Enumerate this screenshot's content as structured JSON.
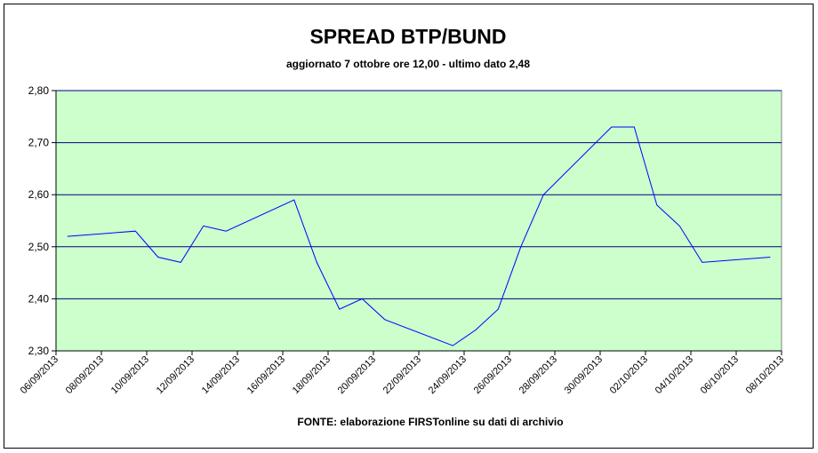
{
  "chart_data": {
    "type": "line",
    "title": "SPREAD BTP/BUND",
    "subtitle": "aggiornato 7 ottobre ore 12,00 - ultimo dato 2,48",
    "source": "FONTE:  elaborazione FIRSTonline su dati di archivio",
    "x": [
      "06/09/2013",
      "09/09/2013",
      "10/09/2013",
      "11/09/2013",
      "12/09/2013",
      "13/09/2013",
      "16/09/2013",
      "17/09/2013",
      "18/09/2013",
      "19/09/2013",
      "20/09/2013",
      "23/09/2013",
      "24/09/2013",
      "25/09/2013",
      "26/09/2013",
      "27/09/2013",
      "30/09/2013",
      "01/10/2013",
      "02/10/2013",
      "03/10/2013",
      "04/10/2013",
      "07/10/2013"
    ],
    "series": [
      {
        "name": "Spread",
        "color": "#0000ff",
        "values": [
          2.52,
          2.53,
          2.48,
          2.47,
          2.54,
          2.53,
          2.59,
          2.47,
          2.38,
          2.4,
          2.36,
          2.31,
          2.34,
          2.38,
          2.5,
          2.6,
          2.73,
          2.73,
          2.58,
          2.54,
          2.47,
          2.48
        ]
      }
    ],
    "xlim": [
      "06/09/2013",
      "08/10/2013"
    ],
    "xticks": [
      "06/09/2013",
      "08/09/2013",
      "10/09/2013",
      "12/09/2013",
      "14/09/2013",
      "16/09/2013",
      "18/09/2013",
      "20/09/2013",
      "22/09/2013",
      "24/09/2013",
      "26/09/2013",
      "28/09/2013",
      "30/09/2013",
      "02/10/2013",
      "04/10/2013",
      "06/10/2013",
      "08/10/2013"
    ],
    "ylim": [
      2.3,
      2.8
    ],
    "yticks": [
      {
        "value": 2.3,
        "label": "2,30"
      },
      {
        "value": 2.4,
        "label": "2,40"
      },
      {
        "value": 2.5,
        "label": "2,50"
      },
      {
        "value": 2.6,
        "label": "2,60"
      },
      {
        "value": 2.7,
        "label": "2,70"
      },
      {
        "value": 2.8,
        "label": "2,80"
      }
    ],
    "grid": true,
    "plot_background": "#ccffcc",
    "grid_color": "#000080"
  }
}
